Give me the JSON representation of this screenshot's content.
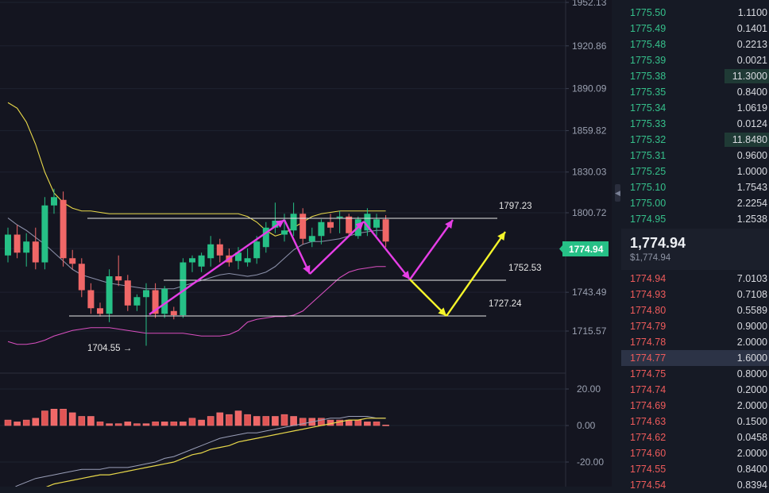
{
  "price_axis": {
    "ticks": [
      "1952.13",
      "1920.86",
      "1890.09",
      "1859.82",
      "1830.03",
      "1800.72",
      "1774.94",
      "1743.49",
      "1715.57"
    ],
    "current": "1774.94"
  },
  "indicator_axis": {
    "ticks": [
      "20.00",
      "0.00",
      "-20.00"
    ]
  },
  "annotations": {
    "resistance": "1797.23",
    "support_mid": "1752.53",
    "support_low": "1727.24",
    "low_marker": "1704.55 →"
  },
  "orderbook": {
    "asks": [
      {
        "price": "1775.50",
        "amount": "1.1100",
        "fill": 0.0
      },
      {
        "price": "1775.49",
        "amount": "0.1401",
        "fill": 0.0
      },
      {
        "price": "1775.48",
        "amount": "0.2213",
        "fill": 0.0
      },
      {
        "price": "1775.39",
        "amount": "0.0021",
        "fill": 0.0
      },
      {
        "price": "1775.38",
        "amount": "11.3000",
        "fill": 0.3
      },
      {
        "price": "1775.35",
        "amount": "0.8400",
        "fill": 0.0
      },
      {
        "price": "1775.34",
        "amount": "1.0619",
        "fill": 0.0
      },
      {
        "price": "1775.33",
        "amount": "0.0124",
        "fill": 0.0
      },
      {
        "price": "1775.32",
        "amount": "11.8480",
        "fill": 0.3
      },
      {
        "price": "1775.31",
        "amount": "0.9600",
        "fill": 0.0
      },
      {
        "price": "1775.25",
        "amount": "1.0000",
        "fill": 0.0
      },
      {
        "price": "1775.10",
        "amount": "1.7543",
        "fill": 0.0
      },
      {
        "price": "1775.00",
        "amount": "2.2254",
        "fill": 0.0
      },
      {
        "price": "1774.95",
        "amount": "1.2538",
        "fill": 0.0
      }
    ],
    "mid_price": "1,774.94",
    "mid_usd": "$1,774.94",
    "bids": [
      {
        "price": "1774.94",
        "amount": "7.0103",
        "fill": 0.0
      },
      {
        "price": "1774.93",
        "amount": "0.7108",
        "fill": 0.0
      },
      {
        "price": "1774.80",
        "amount": "0.5589",
        "fill": 0.0
      },
      {
        "price": "1774.79",
        "amount": "0.9000",
        "fill": 0.0
      },
      {
        "price": "1774.78",
        "amount": "2.0000",
        "fill": 0.0
      },
      {
        "price": "1774.77",
        "amount": "1.6000",
        "fill": 0.0
      },
      {
        "price": "1774.75",
        "amount": "0.8000",
        "fill": 0.0
      },
      {
        "price": "1774.74",
        "amount": "0.2000",
        "fill": 0.0
      },
      {
        "price": "1774.69",
        "amount": "2.0000",
        "fill": 0.0
      },
      {
        "price": "1774.63",
        "amount": "0.1500",
        "fill": 0.0
      },
      {
        "price": "1774.62",
        "amount": "0.0458",
        "fill": 0.0
      },
      {
        "price": "1774.60",
        "amount": "2.0000",
        "fill": 0.0
      },
      {
        "price": "1774.55",
        "amount": "0.8400",
        "fill": 0.0
      },
      {
        "price": "1774.54",
        "amount": "0.8394",
        "fill": 0.0
      }
    ],
    "selected_bid_index": 5
  },
  "colors": {
    "up": "#26c086",
    "down": "#f06767",
    "upper_band": "#e8d84a",
    "lower_band": "#d94fc0",
    "mid_band": "#8a8fa8",
    "arrow_magenta": "#e63ee6",
    "arrow_yellow": "#f5f52a"
  },
  "chart_data": {
    "type": "candlestick",
    "y_axis_labels": [
      "1952.13",
      "1920.86",
      "1890.09",
      "1859.82",
      "1830.03",
      "1800.72",
      "1774.94",
      "1743.49",
      "1715.57"
    ],
    "candles": [
      {
        "o": 1770,
        "h": 1790,
        "l": 1765,
        "c": 1785
      },
      {
        "o": 1785,
        "h": 1792,
        "l": 1768,
        "c": 1772
      },
      {
        "o": 1772,
        "h": 1786,
        "l": 1762,
        "c": 1780
      },
      {
        "o": 1780,
        "h": 1790,
        "l": 1760,
        "c": 1765
      },
      {
        "o": 1765,
        "h": 1812,
        "l": 1760,
        "c": 1806
      },
      {
        "o": 1806,
        "h": 1818,
        "l": 1800,
        "c": 1812
      },
      {
        "o": 1810,
        "h": 1816,
        "l": 1762,
        "c": 1768
      },
      {
        "o": 1768,
        "h": 1774,
        "l": 1760,
        "c": 1764
      },
      {
        "o": 1764,
        "h": 1768,
        "l": 1740,
        "c": 1745
      },
      {
        "o": 1745,
        "h": 1750,
        "l": 1728,
        "c": 1732
      },
      {
        "o": 1732,
        "h": 1736,
        "l": 1726,
        "c": 1728
      },
      {
        "o": 1728,
        "h": 1760,
        "l": 1722,
        "c": 1755
      },
      {
        "o": 1755,
        "h": 1770,
        "l": 1748,
        "c": 1752
      },
      {
        "o": 1752,
        "h": 1756,
        "l": 1730,
        "c": 1734
      },
      {
        "o": 1734,
        "h": 1742,
        "l": 1730,
        "c": 1740
      },
      {
        "o": 1740,
        "h": 1750,
        "l": 1705,
        "c": 1745
      },
      {
        "o": 1745,
        "h": 1750,
        "l": 1725,
        "c": 1728
      },
      {
        "o": 1728,
        "h": 1748,
        "l": 1725,
        "c": 1746
      },
      {
        "o": 1730,
        "h": 1733,
        "l": 1724,
        "c": 1727
      },
      {
        "o": 1727,
        "h": 1768,
        "l": 1725,
        "c": 1765
      },
      {
        "o": 1765,
        "h": 1770,
        "l": 1758,
        "c": 1768
      },
      {
        "o": 1762,
        "h": 1772,
        "l": 1758,
        "c": 1770
      },
      {
        "o": 1768,
        "h": 1784,
        "l": 1762,
        "c": 1778
      },
      {
        "o": 1778,
        "h": 1782,
        "l": 1765,
        "c": 1770
      },
      {
        "o": 1770,
        "h": 1775,
        "l": 1762,
        "c": 1765
      },
      {
        "o": 1766,
        "h": 1776,
        "l": 1760,
        "c": 1772
      },
      {
        "o": 1765,
        "h": 1775,
        "l": 1762,
        "c": 1768
      },
      {
        "o": 1768,
        "h": 1784,
        "l": 1764,
        "c": 1780
      },
      {
        "o": 1776,
        "h": 1794,
        "l": 1772,
        "c": 1790
      },
      {
        "o": 1790,
        "h": 1808,
        "l": 1786,
        "c": 1795
      },
      {
        "o": 1785,
        "h": 1800,
        "l": 1780,
        "c": 1788
      },
      {
        "o": 1788,
        "h": 1808,
        "l": 1784,
        "c": 1800
      },
      {
        "o": 1800,
        "h": 1804,
        "l": 1778,
        "c": 1782
      },
      {
        "o": 1780,
        "h": 1790,
        "l": 1776,
        "c": 1784
      },
      {
        "o": 1784,
        "h": 1796,
        "l": 1778,
        "c": 1794
      },
      {
        "o": 1794,
        "h": 1800,
        "l": 1786,
        "c": 1790
      },
      {
        "o": 1798,
        "h": 1802,
        "l": 1786,
        "c": 1798
      },
      {
        "o": 1798,
        "h": 1800,
        "l": 1784,
        "c": 1786
      },
      {
        "o": 1784,
        "h": 1798,
        "l": 1782,
        "c": 1796
      },
      {
        "o": 1788,
        "h": 1804,
        "l": 1784,
        "c": 1800
      },
      {
        "o": 1790,
        "h": 1800,
        "l": 1784,
        "c": 1796
      },
      {
        "o": 1796,
        "h": 1799,
        "l": 1776,
        "c": 1780
      }
    ],
    "upper_band": [
      1880,
      1876,
      1866,
      1850,
      1830,
      1815,
      1808,
      1804,
      1802,
      1802,
      1801,
      1800,
      1800,
      1800,
      1800,
      1800,
      1800,
      1800,
      1800,
      1800,
      1800,
      1800,
      1800,
      1800,
      1800,
      1800,
      1798,
      1794,
      1788,
      1784,
      1786,
      1790,
      1794,
      1798,
      1800,
      1801,
      1802,
      1802,
      1802,
      1802,
      1802,
      1802
    ],
    "mid_band": [
      1797,
      1792,
      1788,
      1783,
      1778,
      1772,
      1766,
      1760,
      1756,
      1754,
      1752,
      1750,
      1749,
      1748,
      1747,
      1746,
      1746,
      1746,
      1746,
      1748,
      1750,
      1752,
      1754,
      1756,
      1757,
      1756,
      1755,
      1756,
      1758,
      1762,
      1768,
      1774,
      1778,
      1780,
      1780,
      1781,
      1782,
      1784,
      1786,
      1787,
      1788,
      1788
    ],
    "lower_band": [
      1708,
      1706,
      1706,
      1707,
      1709,
      1712,
      1714,
      1716,
      1717,
      1718,
      1718,
      1718,
      1717,
      1716,
      1715,
      1714,
      1714,
      1714,
      1714,
      1714,
      1713,
      1712,
      1712,
      1712,
      1713,
      1716,
      1722,
      1724,
      1725,
      1726,
      1726,
      1727,
      1730,
      1736,
      1742,
      1748,
      1754,
      1758,
      1760,
      1761,
      1762,
      1762
    ],
    "macd_hist": [
      3,
      2,
      3,
      4,
      8,
      9,
      9,
      7,
      5,
      5,
      2,
      1,
      1,
      2,
      1,
      1,
      2,
      2,
      2,
      2,
      4,
      3,
      5,
      7,
      6,
      8,
      6,
      5,
      5,
      5,
      6,
      5,
      4,
      4,
      4,
      3,
      3,
      3,
      3,
      2,
      2,
      0.3
    ],
    "macd_line": [
      -36,
      -33,
      -31,
      -29,
      -28,
      -27,
      -26,
      -25,
      -24,
      -24,
      -24,
      -23,
      -23,
      -23,
      -22,
      -21,
      -20,
      -18,
      -17,
      -15,
      -13,
      -11,
      -9,
      -7,
      -6,
      -5,
      -4,
      -4,
      -3,
      -2,
      -1,
      0,
      1,
      2,
      3,
      4,
      4,
      5,
      5,
      5,
      4,
      4
    ],
    "signal_line": [
      -42,
      -40,
      -38,
      -36,
      -34,
      -32,
      -31,
      -30,
      -29,
      -28,
      -27,
      -27,
      -26,
      -25,
      -24,
      -23,
      -22,
      -21,
      -20,
      -18,
      -16,
      -15,
      -13,
      -12,
      -11,
      -9,
      -8,
      -7,
      -6,
      -5,
      -4,
      -3,
      -2,
      -1,
      0,
      1,
      2,
      3,
      3,
      4,
      4,
      4
    ]
  }
}
